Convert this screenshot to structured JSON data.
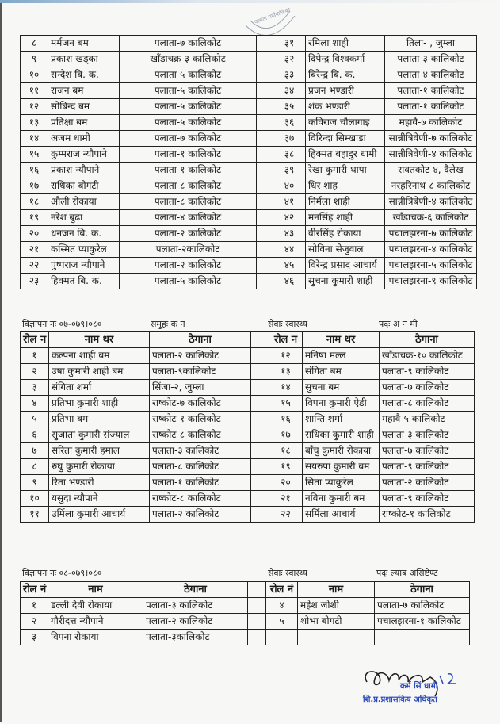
{
  "stamp_top": "पलाता गाउँपालिका गाउँ कार्यपालिकाको कार्यालय",
  "table1": {
    "rows": [
      [
        "८",
        "मर्मजन बम",
        "पलाता-७ कालिकोट",
        "३१",
        "रमिला शाही",
        "तिला- , जुम्ला"
      ],
      [
        "९",
        "प्रकाश खड्का",
        "खाँडाचक्र-३ कालिकोट",
        "३२",
        "दिपेन्द्र विश्वकर्मा",
        "पलाता-३ कालिकोट"
      ],
      [
        "१०",
        "सन्देश बि. क.",
        "पलाता-५ कालिकोट",
        "३३",
        "बिरेन्द्र बि. क.",
        "पलाता-४ कालिकोट"
      ],
      [
        "११",
        "राजन बम",
        "पलाता-५ कालिकोट",
        "३४",
        "प्रजन भण्डारी",
        "पलाता-१ कालिकोट"
      ],
      [
        "१२",
        "सोबिन्द बम",
        "पलाता-५ कालिकोट",
        "३५",
        "शंक भण्डारी",
        "पलाता-१ कालिकोट"
      ],
      [
        "१३",
        "प्रतिक्षा बम",
        "पलाता-५ कालिकोट",
        "३६",
        "कविराज चौलागाइ",
        "महावै-७ कालिकोट"
      ],
      [
        "१४",
        "अजम धामी",
        "पलाता-७ कालिकोट",
        "३७",
        "विरिन्दा सिम्खाडा",
        "सान्नीत्रिवेणी-७ कालिकोट"
      ],
      [
        "१५",
        "कुम्मराज न्यौपाने",
        "पलाता-१ कालिकोट",
        "३८",
        "हिक्मत बहादुर धामी",
        "सान्नीत्रिवेणी-४ कालिकोट"
      ],
      [
        "१६",
        "प्रकाश न्यौपाने",
        "पलाता-१ कालिकोट",
        "३९",
        "रेखा कुमारी थापा",
        "रावतकोट-४, दैलेख"
      ],
      [
        "१७",
        "राधिका बोगटी",
        "पलाता-८ कालिकोट",
        "४०",
        "धिर शाह",
        "नरहरिनाथ-८ कालिकोट"
      ],
      [
        "१८",
        "औली रोकाया",
        "पलाता-८ कालिकोट",
        "४१",
        "निर्मला शाही",
        "सान्नीत्रिबेणी-४ कालिकोट"
      ],
      [
        "१९",
        "नरेश बुढा",
        "पलाता-४ कालिकोट",
        "४२",
        "मनसिंह शाही",
        "खाँडाचक्र-६ कालिकोट"
      ],
      [
        "२०",
        "धनजन बि. क.",
        "पलाता-२ कालिकोट",
        "४३",
        "वीरसिंह रोकाया",
        "पचालझरना-७ कालिकोट"
      ],
      [
        "२१",
        "कस्मित प्याकुरेल",
        "पलाता-२कालिकोट",
        "४४",
        "सोविना सेजुवाल",
        "पचालझरना-४ कालिकोट"
      ],
      [
        "२२",
        "पुष्पराज न्यौपाने",
        "पलाता-२ कालिकोट",
        "४५",
        "विरेन्द्र प्रसाद आचार्य",
        "पचालझरना-५ कालिकोट"
      ],
      [
        "२३",
        "हिक्मत बि. क.",
        "पलाता-५ कालिकोट",
        "४६",
        "सुचना कुमारी शाही",
        "पचालझरना-९ कालिकोट"
      ]
    ]
  },
  "table2": {
    "advert": "विज्ञापन नः ०७-०७९।०८०",
    "group": "समुहः क न",
    "service": "सेवाः स्वास्थ्य",
    "post": "पदः अ न मी",
    "headers": [
      "रोल न",
      "नाम थर",
      "ठेगाना",
      "",
      "रोल न",
      "नाम थर",
      "ठेगाना"
    ],
    "rows": [
      [
        "१",
        "कल्पना शाही बम",
        "पलाता-२ कालिकोट",
        "१२",
        "मनिषा मल्ल",
        "खाँडाचक्र-१० कालिकोट"
      ],
      [
        "२",
        "उषा कुमारी शाही बम",
        "पलाता-९कालिकोट",
        "१३",
        "संगिता बम",
        "पलाता-९ कालिकोट"
      ],
      [
        "३",
        "संगिता शर्मा",
        "सिंजा-२, जुम्ला",
        "१४",
        "सुचना बम",
        "पलाता-७ कालिकोट"
      ],
      [
        "४",
        "प्रतिभा कुमारी शाही",
        "राष्कोट-७ कालिकोट",
        "१५",
        "विपना कुमारी ऐडी",
        "पलाता-८ कालिकोट"
      ],
      [
        "५",
        "प्रतिभा बम",
        "राष्कोट-१ कालिकोट",
        "१६",
        "शान्ति शर्मा",
        "महावै-५ कालिकोट"
      ],
      [
        "६",
        "सुजाता कुमारी संज्याल",
        "राष्कोट-८ कालिकोट",
        "१७",
        "राधिका कुमारी शाही",
        "पलाता-३ कालिकोट"
      ],
      [
        "७",
        "सरिता कुमारी हमाल",
        "पलाता-३ कालिकोट",
        "१८",
        "बाँचु कुमारी रोकाया",
        "पलाता-७ कालिकोट"
      ],
      [
        "८",
        "रुघु कुमारी रोकाया",
        "पलाता-८ कालिकोट",
        "१९",
        "सयरुपा कुमारी बम",
        "पलाता-९ कालिकोट"
      ],
      [
        "९",
        "रिता भण्डारी",
        "पलाता-१ कालिकोट",
        "२०",
        "सिता प्याकुरेल",
        "पलाता-२ कालिकोट"
      ],
      [
        "१०",
        "यसुदा न्यौपाने",
        "राष्कोट-८ कालिकोट",
        "२१",
        "नविना कुमारी बम",
        "पलाता-९ कालिकोट"
      ],
      [
        "११",
        "उर्मिला कुमारी आचार्य",
        "पलाता-२ कालिकोट",
        "२२",
        "सर्मिला आचार्य",
        "राष्कोट-१ कालिकोट"
      ]
    ]
  },
  "table3": {
    "advert": "विज्ञापन नः ०८-०७९।०८०",
    "service": "सेवाः स्वास्थ्य",
    "post": "पदः ल्याब असिष्टेण्ट",
    "headers": [
      "रोल नं",
      "नाम",
      "ठेगाना",
      "",
      "रोल नं",
      "नाम",
      "ठेगाना"
    ],
    "rows": [
      [
        "१",
        "डल्ली देवी रोकाया",
        "पलाता-३ कालिकोट",
        "४",
        "महेश जोशी",
        "पलाता-७ कालिकोट"
      ],
      [
        "२",
        "गौरीदत्त न्यौपाने",
        "पलाता-२ कालिकोट",
        "५",
        "शोभा बोगटी",
        "पचालझरना-१ कालिकोट"
      ],
      [
        "३",
        "विपना रोकाया",
        "पलाता-३कालिकोट",
        "",
        "",
        ""
      ]
    ]
  },
  "signature": {
    "name": "कर्म सिं धामी",
    "title": "शि.प्र.प्रशासकिय अधिकृत",
    "ink_color": "#2a48b8"
  }
}
